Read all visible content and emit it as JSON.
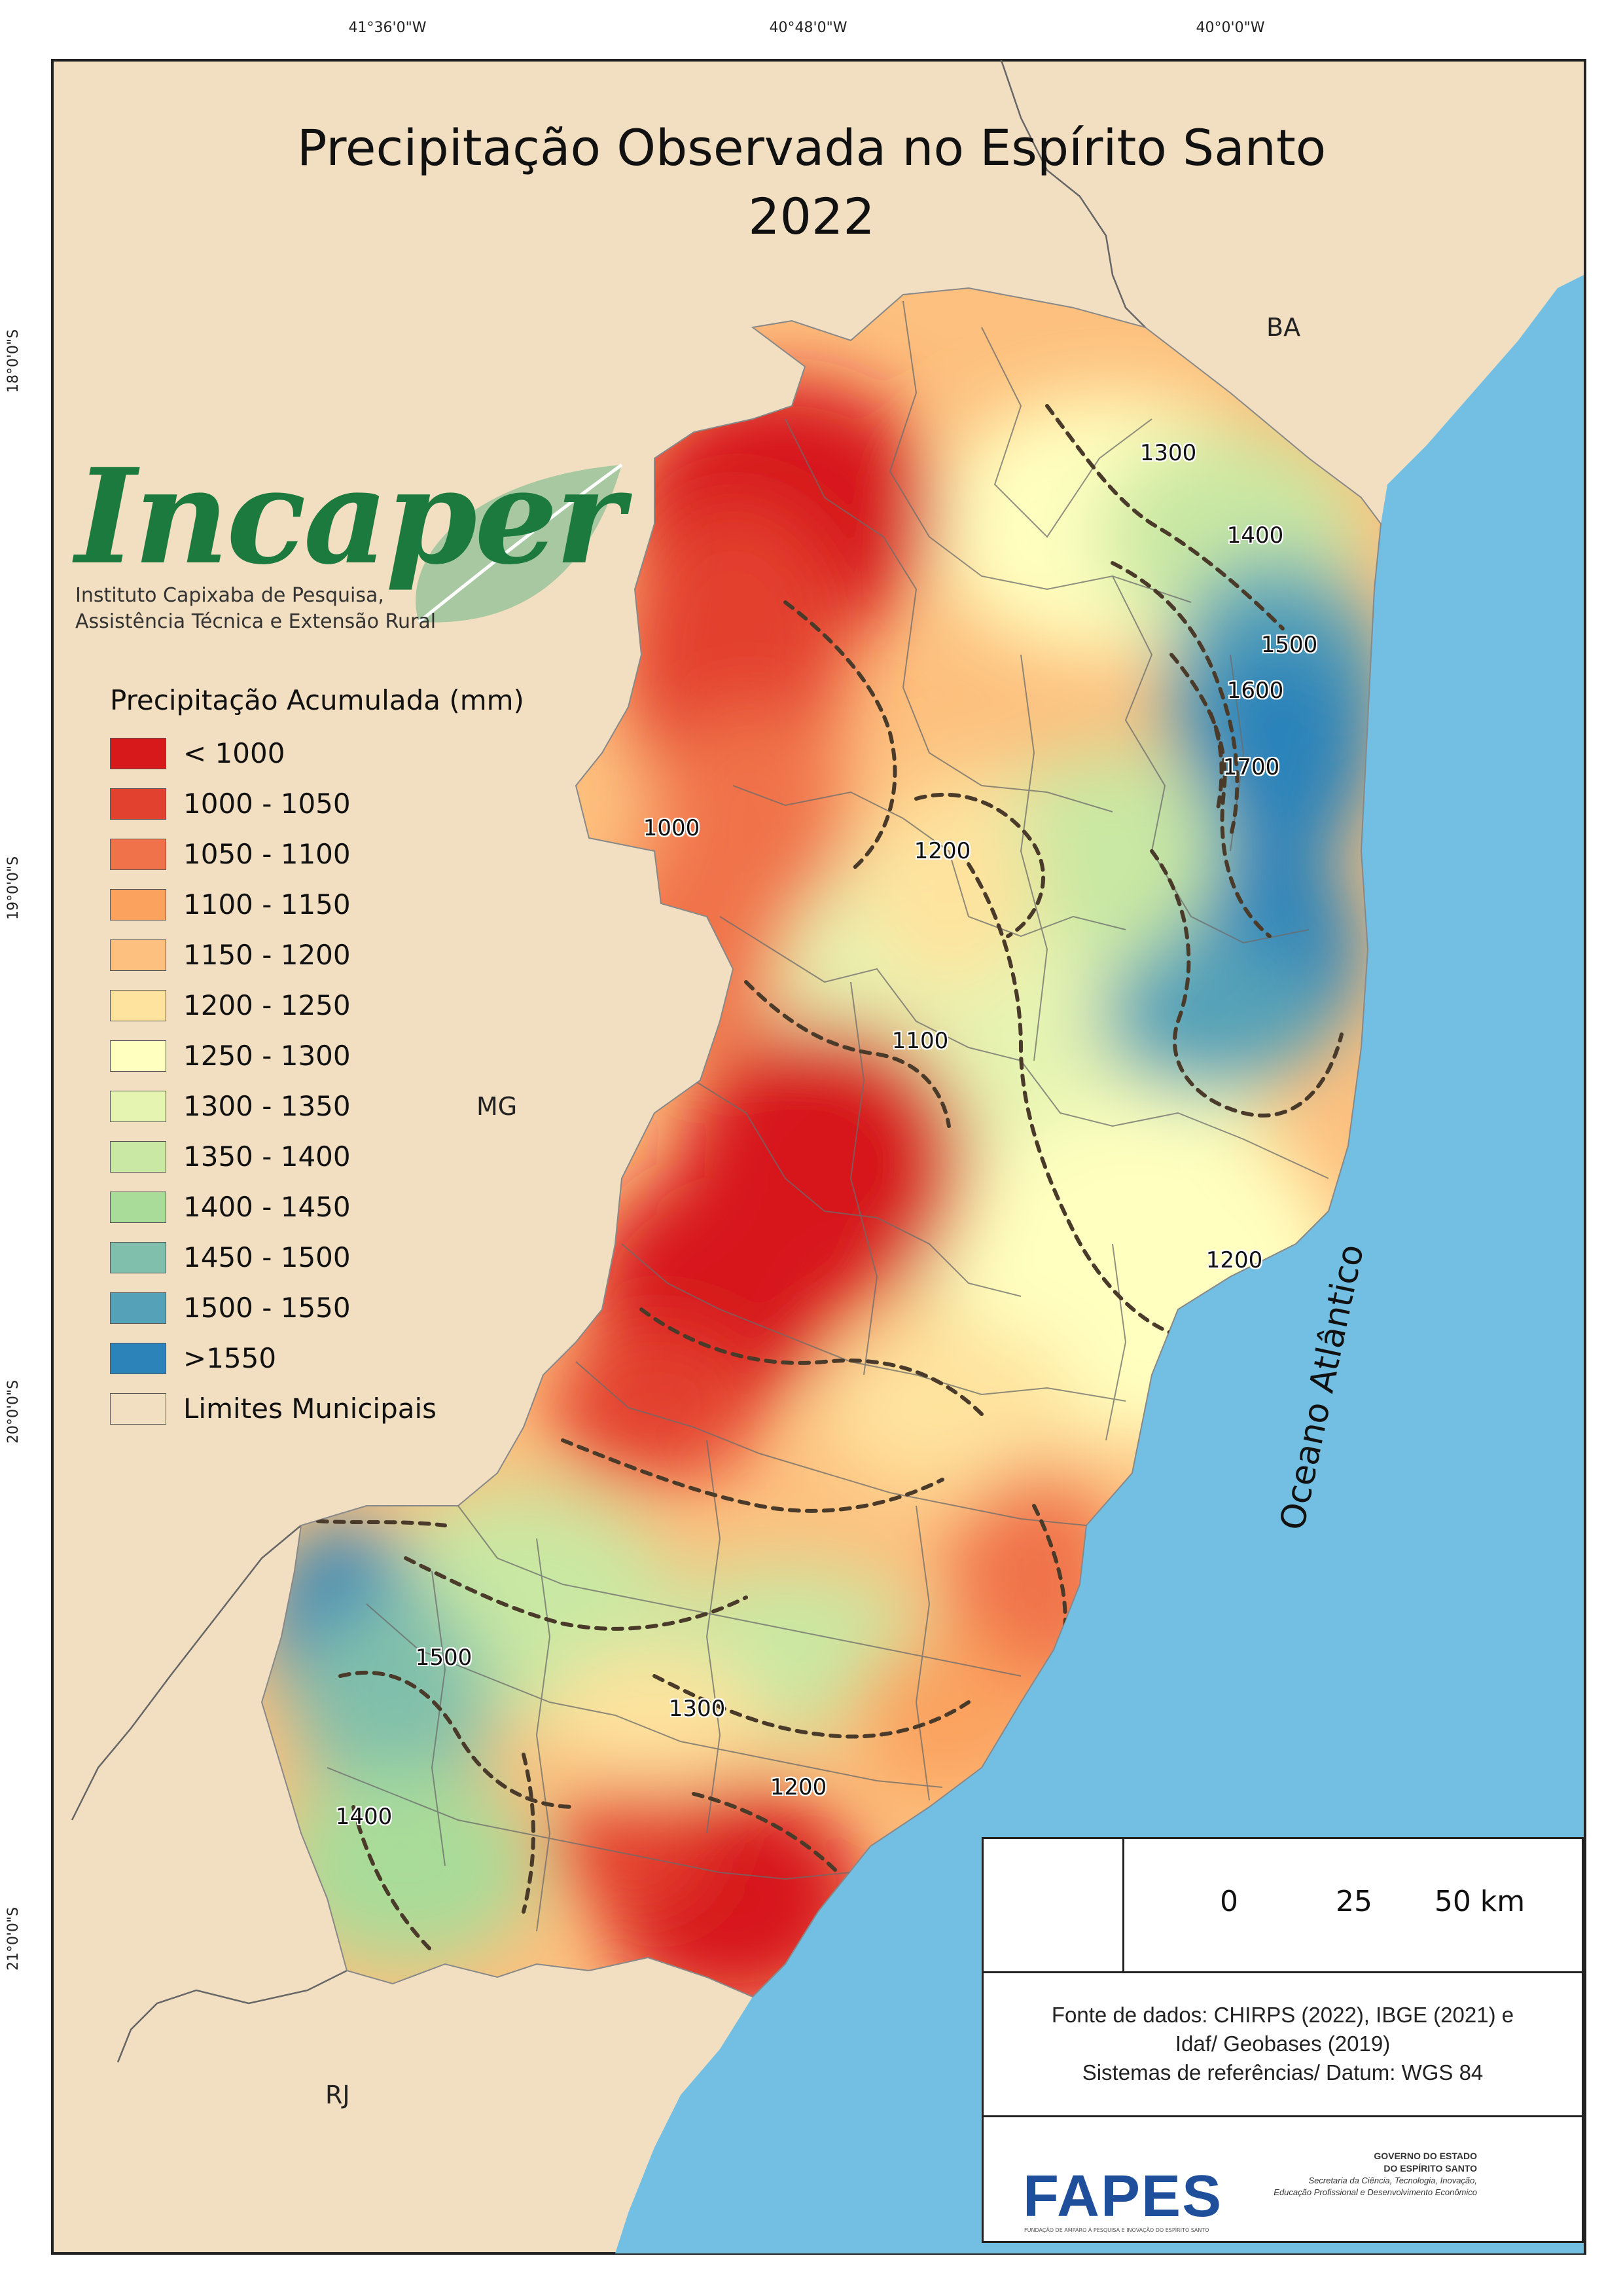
{
  "title": {
    "line1": "Precipitação Observada no Espírito Santo",
    "line2": "2022"
  },
  "graticule": {
    "longitudes": [
      "41°36'0\"W",
      "40°48'0\"W",
      "40°0'0\"W"
    ],
    "latitudes": [
      "18°0'0\"S",
      "19°0'0\"S",
      "20°0'0\"S",
      "21°0'0\"S"
    ]
  },
  "regions": {
    "ba": "BA",
    "mg": "MG",
    "rj": "RJ",
    "ocean": "Oceano Atlântico"
  },
  "logo": {
    "word": "Incaper",
    "line1": "Instituto Capixaba de Pesquisa,",
    "line2": "Assistência Técnica e Extensão Rural"
  },
  "legend": {
    "title": "Precipitação Acumulada (mm)",
    "items": [
      {
        "label": "< 1000",
        "color": "#d7191c"
      },
      {
        "label": "1000 - 1050",
        "color": "#e3412f"
      },
      {
        "label": "1050 - 1100",
        "color": "#f0724a"
      },
      {
        "label": "1100 - 1150",
        "color": "#fba25f"
      },
      {
        "label": "1150 - 1200",
        "color": "#fdc07e"
      },
      {
        "label": "1200 - 1250",
        "color": "#fee39e"
      },
      {
        "label": "1250 - 1300",
        "color": "#ffffbf"
      },
      {
        "label": "1300 - 1350",
        "color": "#e6f4b2"
      },
      {
        "label": "1350 - 1400",
        "color": "#c9e8a3"
      },
      {
        "label": "1400 - 1450",
        "color": "#a9dc99"
      },
      {
        "label": "1450 - 1500",
        "color": "#80bfab"
      },
      {
        "label": "1500 - 1550",
        "color": "#55a2b8"
      },
      {
        "label": ">1550",
        "color": "#2b83ba"
      }
    ],
    "boundary": {
      "label": "Limites Municipais",
      "color": "#f2dfc1"
    }
  },
  "contour_labels": [
    "1300",
    "1400",
    "1500",
    "1600",
    "1700",
    "1000",
    "1200",
    "1100",
    "1200",
    "1500",
    "1300",
    "1200",
    "1400"
  ],
  "scale_bar": {
    "ticks": [
      "0",
      "25",
      "50 km"
    ]
  },
  "sources": {
    "line1": "Fonte de dados: CHIRPS (2022), IBGE (2021) e",
    "line2": "Idaf/ Geobases (2019)",
    "line3": "Sistemas de referências/ Datum: WGS 84"
  },
  "footer": {
    "fapes": "FAPES",
    "fapes_small": "FUNDAÇÃO DE AMPARO À PESQUISA E INOVAÇÃO DO ESPÍRITO SANTO",
    "gov_line1": "GOVERNO DO ESTADO",
    "gov_line2": "DO ESPÍRITO SANTO",
    "gov_line3": "Secretaria da Ciência, Tecnologia, Inovação,",
    "gov_line4": "Educação Profissional e Desenvolvimento Econômico"
  },
  "colors": {
    "land": "#f2dfc1",
    "ocean": "#73bfe3",
    "frame": "#222222"
  }
}
